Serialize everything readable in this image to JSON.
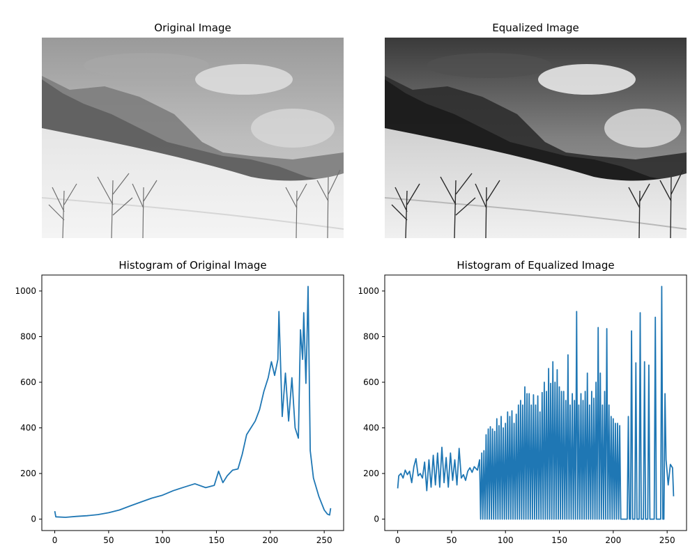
{
  "panels": {
    "original_title": "Original Image",
    "equalized_title": "Equalized Image"
  },
  "chart_data": [
    {
      "type": "line",
      "title": "Histogram of Original Image",
      "xlabel": "",
      "ylabel": "",
      "xlim": [
        -12,
        268
      ],
      "ylim": [
        -50,
        1070
      ],
      "xticks": [
        0,
        50,
        100,
        150,
        200,
        250
      ],
      "yticks": [
        0,
        200,
        400,
        600,
        800,
        1000
      ],
      "line_color": "#1f77b4",
      "grid": false,
      "series": [
        {
          "keypoints": [
            [
              0,
              35
            ],
            [
              1,
              10
            ],
            [
              10,
              8
            ],
            [
              20,
              12
            ],
            [
              30,
              15
            ],
            [
              40,
              20
            ],
            [
              50,
              28
            ],
            [
              60,
              40
            ],
            [
              70,
              58
            ],
            [
              80,
              75
            ],
            [
              90,
              92
            ],
            [
              100,
              105
            ],
            [
              110,
              125
            ],
            [
              120,
              140
            ],
            [
              130,
              155
            ],
            [
              140,
              138
            ],
            [
              148,
              148
            ],
            [
              152,
              210
            ],
            [
              156,
              160
            ],
            [
              160,
              190
            ],
            [
              165,
              215
            ],
            [
              170,
              220
            ],
            [
              174,
              285
            ],
            [
              178,
              370
            ],
            [
              182,
              400
            ],
            [
              186,
              430
            ],
            [
              190,
              480
            ],
            [
              194,
              560
            ],
            [
              198,
              620
            ],
            [
              201,
              690
            ],
            [
              204,
              630
            ],
            [
              207,
              700
            ],
            [
              208,
              910
            ],
            [
              211,
              450
            ],
            [
              214,
              640
            ],
            [
              217,
              430
            ],
            [
              220,
              620
            ],
            [
              223,
              400
            ],
            [
              226,
              355
            ],
            [
              228,
              830
            ],
            [
              230,
              700
            ],
            [
              231,
              905
            ],
            [
              233,
              595
            ],
            [
              234,
              780
            ],
            [
              235,
              1020
            ],
            [
              237,
              300
            ],
            [
              240,
              180
            ],
            [
              245,
              100
            ],
            [
              250,
              40
            ],
            [
              253,
              22
            ],
            [
              255,
              18
            ],
            [
              256,
              48
            ]
          ]
        }
      ]
    },
    {
      "type": "line",
      "title": "Histogram of Equalized Image",
      "xlabel": "",
      "ylabel": "",
      "xlim": [
        -12,
        268
      ],
      "ylim": [
        -50,
        1070
      ],
      "xticks": [
        0,
        50,
        100,
        150,
        200,
        250
      ],
      "yticks": [
        0,
        200,
        400,
        600,
        800,
        1000
      ],
      "line_color": "#1f77b4",
      "grid": false,
      "series": [
        {
          "keypoints": [
            [
              0,
              135
            ],
            [
              1,
              190
            ],
            [
              3,
              200
            ],
            [
              5,
              180
            ],
            [
              7,
              215
            ],
            [
              9,
              195
            ],
            [
              11,
              210
            ],
            [
              13,
              160
            ],
            [
              15,
              230
            ],
            [
              17,
              265
            ],
            [
              19,
              190
            ],
            [
              21,
              200
            ],
            [
              23,
              180
            ],
            [
              25,
              250
            ],
            [
              27,
              125
            ],
            [
              29,
              260
            ],
            [
              31,
              140
            ],
            [
              33,
              280
            ],
            [
              35,
              150
            ],
            [
              37,
              290
            ],
            [
              39,
              140
            ],
            [
              41,
              315
            ],
            [
              43,
              160
            ],
            [
              45,
              270
            ],
            [
              47,
              140
            ],
            [
              49,
              290
            ],
            [
              51,
              170
            ],
            [
              53,
              260
            ],
            [
              55,
              150
            ],
            [
              57,
              310
            ],
            [
              59,
              180
            ],
            [
              61,
              195
            ],
            [
              63,
              170
            ],
            [
              65,
              210
            ],
            [
              67,
              225
            ],
            [
              69,
              205
            ],
            [
              71,
              230
            ],
            [
              74,
              215
            ],
            [
              76,
              260
            ],
            [
              77,
              0
            ],
            [
              78,
              290
            ],
            [
              79,
              0
            ],
            [
              80,
              300
            ],
            [
              81,
              0
            ],
            [
              82,
              370
            ],
            [
              83,
              0
            ],
            [
              84,
              395
            ],
            [
              85,
              0
            ],
            [
              86,
              405
            ],
            [
              87,
              0
            ],
            [
              88,
              395
            ],
            [
              89,
              0
            ],
            [
              90,
              385
            ],
            [
              91,
              0
            ],
            [
              92,
              440
            ],
            [
              93,
              0
            ],
            [
              94,
              410
            ],
            [
              95,
              0
            ],
            [
              96,
              450
            ],
            [
              97,
              0
            ],
            [
              98,
              400
            ],
            [
              99,
              0
            ],
            [
              100,
              420
            ],
            [
              101,
              0
            ],
            [
              102,
              470
            ],
            [
              103,
              0
            ],
            [
              104,
              450
            ],
            [
              105,
              0
            ],
            [
              106,
              475
            ],
            [
              107,
              0
            ],
            [
              108,
              420
            ],
            [
              109,
              0
            ],
            [
              110,
              460
            ],
            [
              111,
              0
            ],
            [
              112,
              500
            ],
            [
              113,
              0
            ],
            [
              114,
              520
            ],
            [
              115,
              0
            ],
            [
              116,
              500
            ],
            [
              117,
              0
            ],
            [
              118,
              580
            ],
            [
              119,
              0
            ],
            [
              120,
              550
            ],
            [
              121,
              0
            ],
            [
              122,
              550
            ],
            [
              123,
              0
            ],
            [
              124,
              500
            ],
            [
              125,
              0
            ],
            [
              126,
              545
            ],
            [
              127,
              0
            ],
            [
              128,
              500
            ],
            [
              129,
              0
            ],
            [
              130,
              540
            ],
            [
              131,
              0
            ],
            [
              132,
              470
            ],
            [
              133,
              0
            ],
            [
              134,
              555
            ],
            [
              135,
              0
            ],
            [
              136,
              600
            ],
            [
              137,
              0
            ],
            [
              138,
              560
            ],
            [
              139,
              0
            ],
            [
              140,
              660
            ],
            [
              141,
              0
            ],
            [
              142,
              595
            ],
            [
              143,
              0
            ],
            [
              144,
              690
            ],
            [
              145,
              0
            ],
            [
              146,
              600
            ],
            [
              147,
              0
            ],
            [
              148,
              655
            ],
            [
              149,
              0
            ],
            [
              150,
              580
            ],
            [
              151,
              0
            ],
            [
              152,
              560
            ],
            [
              153,
              0
            ],
            [
              154,
              560
            ],
            [
              155,
              0
            ],
            [
              156,
              520
            ],
            [
              157,
              0
            ],
            [
              158,
              720
            ],
            [
              159,
              0
            ],
            [
              160,
              500
            ],
            [
              161,
              0
            ],
            [
              162,
              550
            ],
            [
              163,
              0
            ],
            [
              164,
              520
            ],
            [
              165,
              0
            ],
            [
              166,
              910
            ],
            [
              167,
              0
            ],
            [
              168,
              500
            ],
            [
              169,
              0
            ],
            [
              170,
              550
            ],
            [
              171,
              0
            ],
            [
              172,
              520
            ],
            [
              173,
              0
            ],
            [
              174,
              560
            ],
            [
              175,
              0
            ],
            [
              176,
              640
            ],
            [
              177,
              0
            ],
            [
              178,
              500
            ],
            [
              179,
              0
            ],
            [
              180,
              560
            ],
            [
              181,
              0
            ],
            [
              182,
              530
            ],
            [
              183,
              0
            ],
            [
              184,
              600
            ],
            [
              185,
              0
            ],
            [
              186,
              840
            ],
            [
              187,
              0
            ],
            [
              188,
              640
            ],
            [
              189,
              0
            ],
            [
              190,
              500
            ],
            [
              191,
              0
            ],
            [
              192,
              560
            ],
            [
              193,
              0
            ],
            [
              194,
              835
            ],
            [
              195,
              0
            ],
            [
              196,
              500
            ],
            [
              197,
              0
            ],
            [
              198,
              450
            ],
            [
              199,
              0
            ],
            [
              200,
              440
            ],
            [
              201,
              0
            ],
            [
              202,
              420
            ],
            [
              203,
              0
            ],
            [
              204,
              420
            ],
            [
              205,
              0
            ],
            [
              206,
              410
            ],
            [
              207,
              0
            ],
            [
              208,
              0
            ],
            [
              209,
              0
            ],
            [
              210,
              0
            ],
            [
              211,
              0
            ],
            [
              212,
              0
            ],
            [
              213,
              0
            ],
            [
              214,
              450
            ],
            [
              215,
              0
            ],
            [
              216,
              0
            ],
            [
              217,
              825
            ],
            [
              218,
              0
            ],
            [
              219,
              0
            ],
            [
              220,
              0
            ],
            [
              221,
              685
            ],
            [
              222,
              0
            ],
            [
              223,
              0
            ],
            [
              224,
              0
            ],
            [
              225,
              905
            ],
            [
              226,
              0
            ],
            [
              227,
              0
            ],
            [
              228,
              0
            ],
            [
              229,
              690
            ],
            [
              230,
              0
            ],
            [
              231,
              0
            ],
            [
              232,
              0
            ],
            [
              233,
              675
            ],
            [
              234,
              0
            ],
            [
              235,
              0
            ],
            [
              236,
              0
            ],
            [
              237,
              0
            ],
            [
              238,
              0
            ],
            [
              239,
              885
            ],
            [
              240,
              0
            ],
            [
              241,
              0
            ],
            [
              242,
              0
            ],
            [
              243,
              0
            ],
            [
              244,
              0
            ],
            [
              245,
              1020
            ],
            [
              246,
              0
            ],
            [
              247,
              0
            ],
            [
              248,
              550
            ],
            [
              249,
              260
            ],
            [
              251,
              150
            ],
            [
              253,
              240
            ],
            [
              255,
              225
            ],
            [
              256,
              100
            ]
          ]
        }
      ]
    }
  ]
}
